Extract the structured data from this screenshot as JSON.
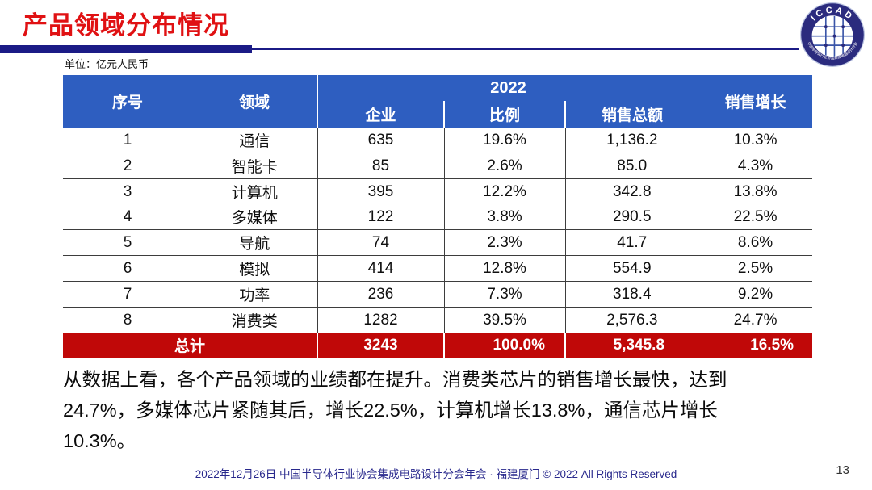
{
  "slide": {
    "title": "产品领域分布情况",
    "unit_label": "单位：亿元人民币",
    "footer": "2022年12月26日 中国半导体行业协会集成电路设计分会年会 · 福建厦门 © 2022 All Rights Reserved",
    "page_number": "13"
  },
  "logo": {
    "top_text": "ICCAD",
    "bottom_text": "中国半导体行业协会集成电路设计分会"
  },
  "colors": {
    "title_red": "#E01113",
    "bar_navy": "#1B1B86",
    "header_blue": "#2E5EC0",
    "total_row_red": "#C00808",
    "footer_navy": "#28288C"
  },
  "table": {
    "header": {
      "col_no": "序号",
      "col_domain": "领域",
      "col_year": "2022",
      "col_companies": "企业",
      "col_ratio": "比例",
      "col_sales": "销售总额",
      "col_growth": "销售增长"
    },
    "rows": [
      {
        "no": "1",
        "domain": "通信",
        "companies": "635",
        "ratio": "19.6%",
        "sales": "1,136.2",
        "growth": "10.3%"
      },
      {
        "no": "2",
        "domain": "智能卡",
        "companies": "85",
        "ratio": "2.6%",
        "sales": "85.0",
        "growth": "4.3%"
      },
      {
        "no": "3",
        "domain": "计算机",
        "companies": "395",
        "ratio": "12.2%",
        "sales": "342.8",
        "growth": "13.8%"
      },
      {
        "no": "4",
        "domain": "多媒体",
        "companies": "122",
        "ratio": "3.8%",
        "sales": "290.5",
        "growth": "22.5%"
      },
      {
        "no": "5",
        "domain": "导航",
        "companies": "74",
        "ratio": "2.3%",
        "sales": "41.7",
        "growth": "8.6%"
      },
      {
        "no": "6",
        "domain": "模拟",
        "companies": "414",
        "ratio": "12.8%",
        "sales": "554.9",
        "growth": "2.5%"
      },
      {
        "no": "7",
        "domain": "功率",
        "companies": "236",
        "ratio": "7.3%",
        "sales": "318.4",
        "growth": "9.2%"
      },
      {
        "no": "8",
        "domain": "消费类",
        "companies": "1282",
        "ratio": "39.5%",
        "sales": "2,576.3",
        "growth": "24.7%"
      }
    ],
    "total": {
      "label": "总计",
      "companies": "3243",
      "ratio": "100.0%",
      "sales": "5,345.8",
      "growth": "16.5%"
    }
  },
  "body": {
    "lines": [
      "从数据上看，各个产品领域的业绩都在提升。消费类芯片的销售增长最快，达到",
      "24.7%，多媒体芯片紧随其后，增长22.5%，计算机增长13.8%，通信芯片增长",
      "10.3%。"
    ]
  }
}
